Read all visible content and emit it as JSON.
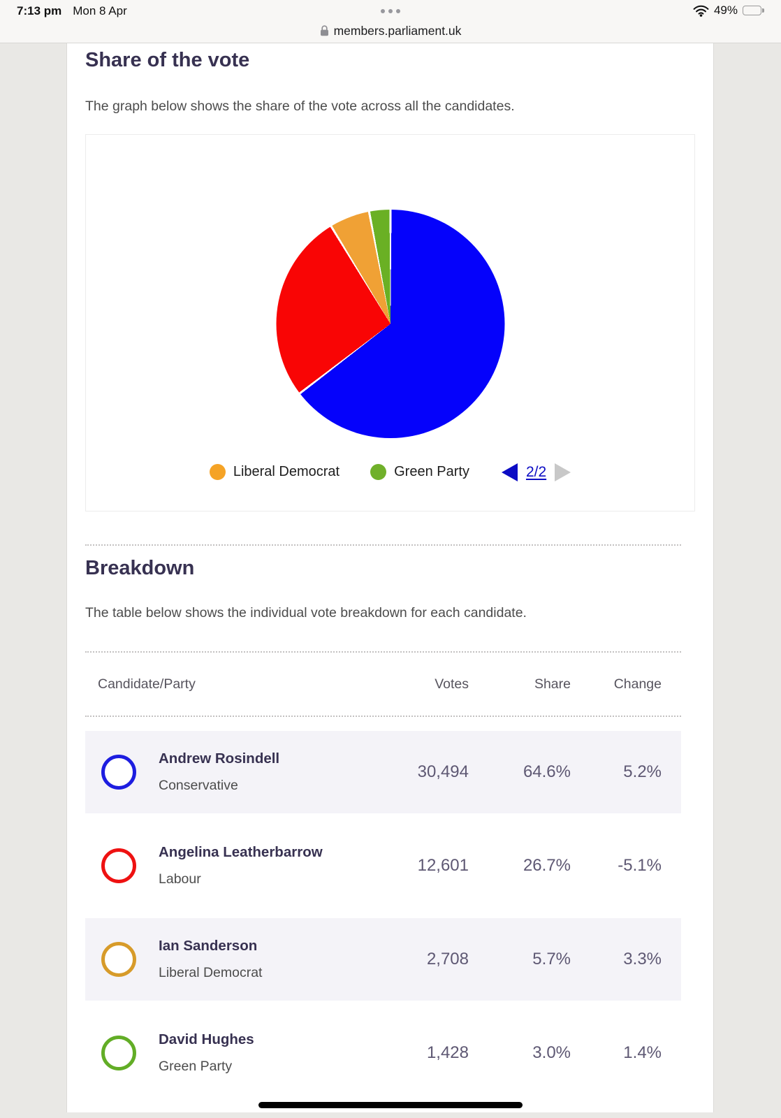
{
  "status_bar": {
    "time": "7:13 pm",
    "date": "Mon 8 Apr",
    "battery_percent": "49%"
  },
  "url_bar": {
    "domain": "members.parliament.uk"
  },
  "share_section": {
    "title": "Share of the vote",
    "description": "The graph below shows the share of the vote across all the candidates."
  },
  "chart_data": {
    "type": "pie",
    "title": "Share of the vote",
    "labels": [
      "Conservative",
      "Labour",
      "Liberal Democrat",
      "Green Party"
    ],
    "values": [
      64.6,
      26.7,
      5.7,
      3.0
    ],
    "colors": [
      "#0502fb",
      "#f90505",
      "#f0a135",
      "#6ab024"
    ],
    "legend_position": "bottom",
    "legend_visible_items": [
      {
        "label": "Liberal Democrat",
        "color": "#f5a326"
      },
      {
        "label": "Green Party",
        "color": "#70b02a"
      }
    ],
    "legend_page": "2/2"
  },
  "breakdown_section": {
    "title": "Breakdown",
    "description": "The table below shows the individual vote breakdown for each candidate."
  },
  "table": {
    "columns": [
      "Candidate/Party",
      "Votes",
      "Share",
      "Change"
    ],
    "rows": [
      {
        "name": "Andrew Rosindell",
        "party": "Conservative",
        "votes": "30,494",
        "share": "64.6%",
        "change": "5.2%",
        "ring_color": "#1d1de0"
      },
      {
        "name": "Angelina Leatherbarrow",
        "party": "Labour",
        "votes": "12,601",
        "share": "26.7%",
        "change": "-5.1%",
        "ring_color": "#ee1111"
      },
      {
        "name": "Ian Sanderson",
        "party": "Liberal Democrat",
        "votes": "2,708",
        "share": "5.7%",
        "change": "3.3%",
        "ring_color": "#d79b2a"
      },
      {
        "name": "David Hughes",
        "party": "Green Party",
        "votes": "1,428",
        "share": "3.0%",
        "change": "1.4%",
        "ring_color": "#62ad26"
      }
    ]
  }
}
